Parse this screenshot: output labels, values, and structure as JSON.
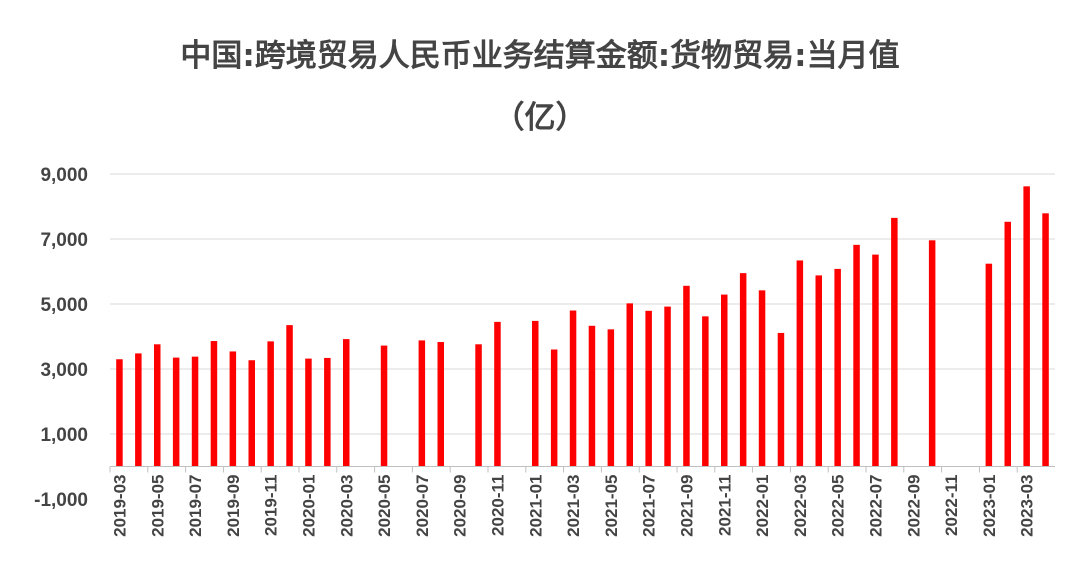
{
  "chart_data": {
    "type": "bar",
    "title": "中国:跨境贸易人民币业务结算金额:货物贸易:当月值",
    "subtitle": "（亿）",
    "ylim": [
      -1000,
      9000
    ],
    "yticks": [
      9000,
      7000,
      5000,
      3000,
      1000,
      -1000
    ],
    "ytick_labels": [
      "9,000",
      "7,000",
      "5,000",
      "3,000",
      "1,000",
      "-1,000"
    ],
    "xtick_labels": [
      "2019-03",
      "2019-05",
      "2019-07",
      "2019-09",
      "2019-11",
      "2020-01",
      "2020-03",
      "2020-05",
      "2020-07",
      "2020-09",
      "2020-11",
      "2021-01",
      "2021-03",
      "2021-05",
      "2021-07",
      "2021-09",
      "2021-11",
      "2022-01",
      "2022-03",
      "2022-05",
      "2022-07",
      "2022-09",
      "2022-11",
      "2023-01",
      "2023-03"
    ],
    "categories": [
      "2019-03",
      "2019-04",
      "2019-05",
      "2019-06",
      "2019-07",
      "2019-08",
      "2019-09",
      "2019-10",
      "2019-11",
      "2019-12",
      "2020-01",
      "2020-02",
      "2020-03",
      "2020-04",
      "2020-05",
      "2020-06",
      "2020-07",
      "2020-08",
      "2020-09",
      "2020-10",
      "2020-11",
      "2020-12",
      "2021-01",
      "2021-02",
      "2021-03",
      "2021-04",
      "2021-05",
      "2021-06",
      "2021-07",
      "2021-08",
      "2021-09",
      "2021-10",
      "2021-11",
      "2021-12",
      "2022-01",
      "2022-02",
      "2022-03",
      "2022-04",
      "2022-05",
      "2022-06",
      "2022-07",
      "2022-08",
      "2022-09",
      "2022-10",
      "2022-11",
      "2022-12",
      "2023-01",
      "2023-02",
      "2023-03",
      "2023-04"
    ],
    "values": [
      3300,
      3480,
      3760,
      3350,
      3380,
      3860,
      3540,
      3270,
      3850,
      4350,
      3320,
      3340,
      3920,
      null,
      3720,
      null,
      3880,
      3830,
      null,
      3760,
      4450,
      null,
      4480,
      3600,
      4800,
      4330,
      4220,
      5020,
      4790,
      4920,
      5560,
      4620,
      5290,
      5950,
      5420,
      4110,
      6340,
      5880,
      6080,
      6820,
      6520,
      7650,
      null,
      6960,
      null,
      null,
      6240,
      7530,
      8620,
      7790
    ],
    "colors": {
      "bar": "#ff0000",
      "grid": "#d9d9d9",
      "axis": "#bfbfbf",
      "text": "#444444"
    },
    "grid": true,
    "legend": "none"
  }
}
